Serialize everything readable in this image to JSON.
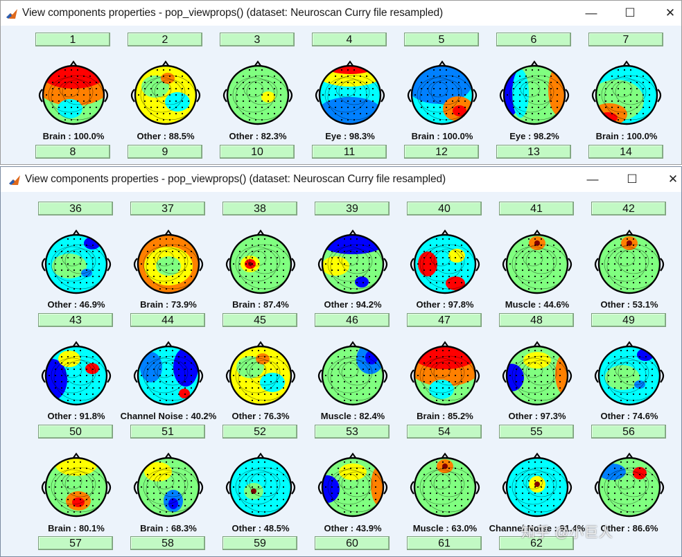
{
  "colors": {
    "button_bg": "#c2f9c4",
    "window_bg": "#ecf3fb",
    "jet": [
      "#00008f",
      "#0000ff",
      "#0080ff",
      "#00ffff",
      "#80ff80",
      "#ffff00",
      "#ff8000",
      "#ff0000",
      "#800000"
    ]
  },
  "back_window": {
    "title": "View components properties - pop_viewprops() (dataset: Neuroscan Curry file resampled)",
    "controls": {
      "minimize": "—",
      "maximize": "☐",
      "close": "✕"
    },
    "components": [
      {
        "number": "1",
        "label": "Brain : 100.0%",
        "pattern": "red-top"
      },
      {
        "number": "2",
        "label": "Other : 88.5%",
        "pattern": "patchy-yellow"
      },
      {
        "number": "3",
        "label": "Other : 82.3%",
        "pattern": "flat-green"
      },
      {
        "number": "4",
        "label": "Eye : 98.3%",
        "pattern": "red-front"
      },
      {
        "number": "5",
        "label": "Brain : 100.0%",
        "pattern": "blue-red-corner"
      },
      {
        "number": "6",
        "label": "Eye : 98.2%",
        "pattern": "lateral"
      },
      {
        "number": "7",
        "label": "Brain : 100.0%",
        "pattern": "red-bottom-left"
      }
    ],
    "next_row_numbers": [
      "8",
      "9",
      "10",
      "11",
      "12",
      "13",
      "14"
    ]
  },
  "front_window": {
    "title": "View components properties - pop_viewprops() (dataset: Neuroscan Curry file resampled)",
    "controls": {
      "minimize": "—",
      "maximize": "☐",
      "close": "✕"
    },
    "rows": [
      {
        "numbers": [
          "36",
          "37",
          "38",
          "39",
          "40",
          "41",
          "42"
        ],
        "components": [
          {
            "label": "Other : 46.9%",
            "pattern": "patchy-cyan"
          },
          {
            "label": "Brain : 73.9%",
            "pattern": "orange-field"
          },
          {
            "label": "Brain : 87.4%",
            "pattern": "focal-red-left"
          },
          {
            "label": "Other : 94.2%",
            "pattern": "blue-top"
          },
          {
            "label": "Other : 97.8%",
            "pattern": "multi-red"
          },
          {
            "label": "Muscle : 44.6%",
            "pattern": "focal-top"
          },
          {
            "label": "Other : 53.1%",
            "pattern": "focal-top"
          }
        ]
      },
      {
        "numbers": [
          "43",
          "44",
          "45",
          "46",
          "47",
          "48",
          "49"
        ],
        "components": [
          {
            "label": "Other : 91.8%",
            "pattern": "blue-left-mix"
          },
          {
            "label": "Channel Noise : 40.2%",
            "pattern": "blue-mix-focal"
          },
          {
            "label": "Other : 76.3%",
            "pattern": "patchy-yellow"
          },
          {
            "label": "Muscle : 82.4%",
            "pattern": "blue-top-right"
          },
          {
            "label": "Brain : 85.2%",
            "pattern": "red-top"
          },
          {
            "label": "Other : 97.3%",
            "pattern": "lateral-mix"
          },
          {
            "label": "Other : 74.6%",
            "pattern": "patchy-cyan"
          }
        ]
      },
      {
        "numbers": [
          "50",
          "51",
          "52",
          "53",
          "54",
          "55",
          "56"
        ],
        "components": [
          {
            "label": "Brain : 80.1%",
            "pattern": "red-bottom-center"
          },
          {
            "label": "Brain : 68.3%",
            "pattern": "blue-bottom-center"
          },
          {
            "label": "Other : 48.5%",
            "pattern": "focal-left"
          },
          {
            "label": "Other : 43.9%",
            "pattern": "lateral-mix"
          },
          {
            "label": "Muscle : 63.0%",
            "pattern": "focal-top"
          },
          {
            "label": "Channel Noise : 91.4%",
            "pattern": "focal-center"
          },
          {
            "label": "Other : 86.6%",
            "pattern": "focal-top-right"
          }
        ]
      }
    ],
    "last_row_numbers": [
      "57",
      "58",
      "59",
      "60",
      "61",
      "62"
    ]
  },
  "watermark": "知乎 @小巨人"
}
